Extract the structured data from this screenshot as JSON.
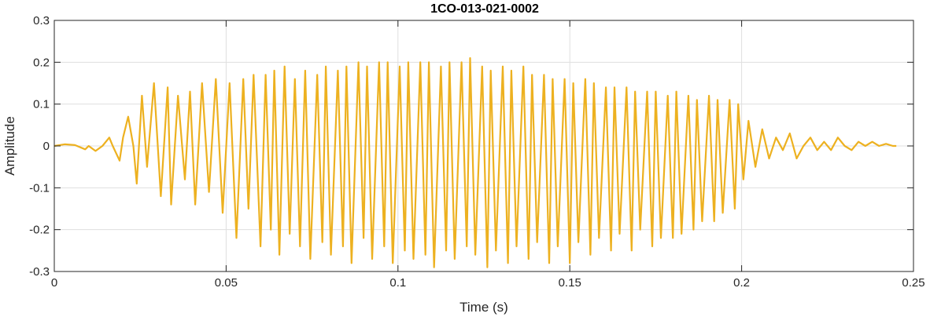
{
  "chart_data": {
    "type": "line",
    "title": "1CO-013-021-0002",
    "xlabel": "Time (s)",
    "ylabel": "Amplitude",
    "xlim": [
      0,
      0.25
    ],
    "ylim": [
      -0.3,
      0.3
    ],
    "xticks": [
      0,
      0.05,
      0.1,
      0.15,
      0.2,
      0.25
    ],
    "xtick_labels": [
      "0",
      "0.05",
      "0.1",
      "0.15",
      "0.2",
      "0.25"
    ],
    "yticks": [
      0.3,
      0.2,
      0.1,
      0,
      -0.1,
      -0.2,
      -0.3
    ],
    "ytick_labels": [
      "0.3",
      "0.2",
      "0.1",
      "0",
      "-0.1",
      "-0.2",
      "-0.3"
    ],
    "grid": true,
    "series": [
      {
        "color": "#EDB120",
        "x": [
          0.0,
          0.003,
          0.006,
          0.009,
          0.01,
          0.012,
          0.014,
          0.016,
          0.017,
          0.019,
          0.02,
          0.0215,
          0.023,
          0.024,
          0.0255,
          0.027,
          0.029,
          0.031,
          0.033,
          0.034,
          0.036,
          0.038,
          0.0395,
          0.041,
          0.043,
          0.045,
          0.047,
          0.049,
          0.051,
          0.053,
          0.055,
          0.0565,
          0.058,
          0.06,
          0.0615,
          0.063,
          0.064,
          0.0655,
          0.067,
          0.0685,
          0.07,
          0.0715,
          0.073,
          0.0745,
          0.0765,
          0.078,
          0.079,
          0.0805,
          0.0825,
          0.084,
          0.085,
          0.0865,
          0.0885,
          0.09,
          0.091,
          0.0925,
          0.0945,
          0.096,
          0.097,
          0.0985,
          0.1005,
          0.102,
          0.103,
          0.1045,
          0.1065,
          0.108,
          0.109,
          0.1105,
          0.1125,
          0.114,
          0.115,
          0.1165,
          0.1185,
          0.12,
          0.121,
          0.1225,
          0.1245,
          0.126,
          0.127,
          0.1285,
          0.1305,
          0.132,
          0.133,
          0.1345,
          0.1365,
          0.138,
          0.139,
          0.1405,
          0.1425,
          0.144,
          0.145,
          0.1465,
          0.1485,
          0.15,
          0.151,
          0.1525,
          0.1545,
          0.156,
          0.157,
          0.1585,
          0.1605,
          0.162,
          0.163,
          0.1645,
          0.1665,
          0.168,
          0.169,
          0.1705,
          0.1725,
          0.174,
          0.175,
          0.1765,
          0.1785,
          0.18,
          0.181,
          0.1825,
          0.1845,
          0.186,
          0.187,
          0.1885,
          0.1905,
          0.192,
          0.193,
          0.1945,
          0.1965,
          0.198,
          0.199,
          0.2005,
          0.202,
          0.204,
          0.206,
          0.208,
          0.21,
          0.212,
          0.214,
          0.216,
          0.218,
          0.22,
          0.222,
          0.224,
          0.226,
          0.228,
          0.23,
          0.232,
          0.234,
          0.236,
          0.238,
          0.24,
          0.242,
          0.244,
          0.245
        ],
        "y": [
          0.0,
          0.004,
          0.002,
          -0.008,
          0.0,
          -0.012,
          0.0,
          0.02,
          0.0,
          -0.035,
          0.02,
          0.07,
          0.0,
          -0.09,
          0.12,
          -0.05,
          0.15,
          -0.12,
          0.14,
          -0.14,
          0.12,
          -0.08,
          0.13,
          -0.14,
          0.15,
          -0.11,
          0.16,
          -0.16,
          0.15,
          -0.22,
          0.16,
          -0.15,
          0.17,
          -0.24,
          0.17,
          -0.2,
          0.18,
          -0.26,
          0.19,
          -0.21,
          0.16,
          -0.24,
          0.18,
          -0.27,
          0.17,
          -0.23,
          0.19,
          -0.26,
          0.18,
          -0.24,
          0.19,
          -0.28,
          0.2,
          -0.22,
          0.19,
          -0.27,
          0.2,
          -0.24,
          0.2,
          -0.28,
          0.19,
          -0.25,
          0.2,
          -0.27,
          0.2,
          -0.26,
          0.2,
          -0.29,
          0.19,
          -0.25,
          0.2,
          -0.27,
          0.2,
          -0.24,
          0.21,
          -0.26,
          0.19,
          -0.29,
          0.18,
          -0.25,
          0.19,
          -0.28,
          0.18,
          -0.24,
          0.19,
          -0.27,
          0.17,
          -0.23,
          0.17,
          -0.28,
          0.16,
          -0.24,
          0.16,
          -0.28,
          0.15,
          -0.23,
          0.16,
          -0.26,
          0.15,
          -0.22,
          0.14,
          -0.25,
          0.14,
          -0.21,
          0.14,
          -0.25,
          0.13,
          -0.2,
          0.13,
          -0.24,
          0.13,
          -0.22,
          0.12,
          -0.22,
          0.13,
          -0.21,
          0.12,
          -0.2,
          0.11,
          -0.18,
          0.12,
          -0.18,
          0.11,
          -0.16,
          0.11,
          -0.15,
          0.1,
          -0.08,
          0.06,
          -0.05,
          0.04,
          -0.03,
          0.02,
          -0.01,
          0.03,
          -0.03,
          0.0,
          0.02,
          -0.01,
          0.01,
          -0.01,
          0.02,
          0.0,
          -0.01,
          0.01,
          0.0,
          0.01,
          0.0,
          0.005,
          0.0,
          0.0
        ]
      }
    ]
  }
}
